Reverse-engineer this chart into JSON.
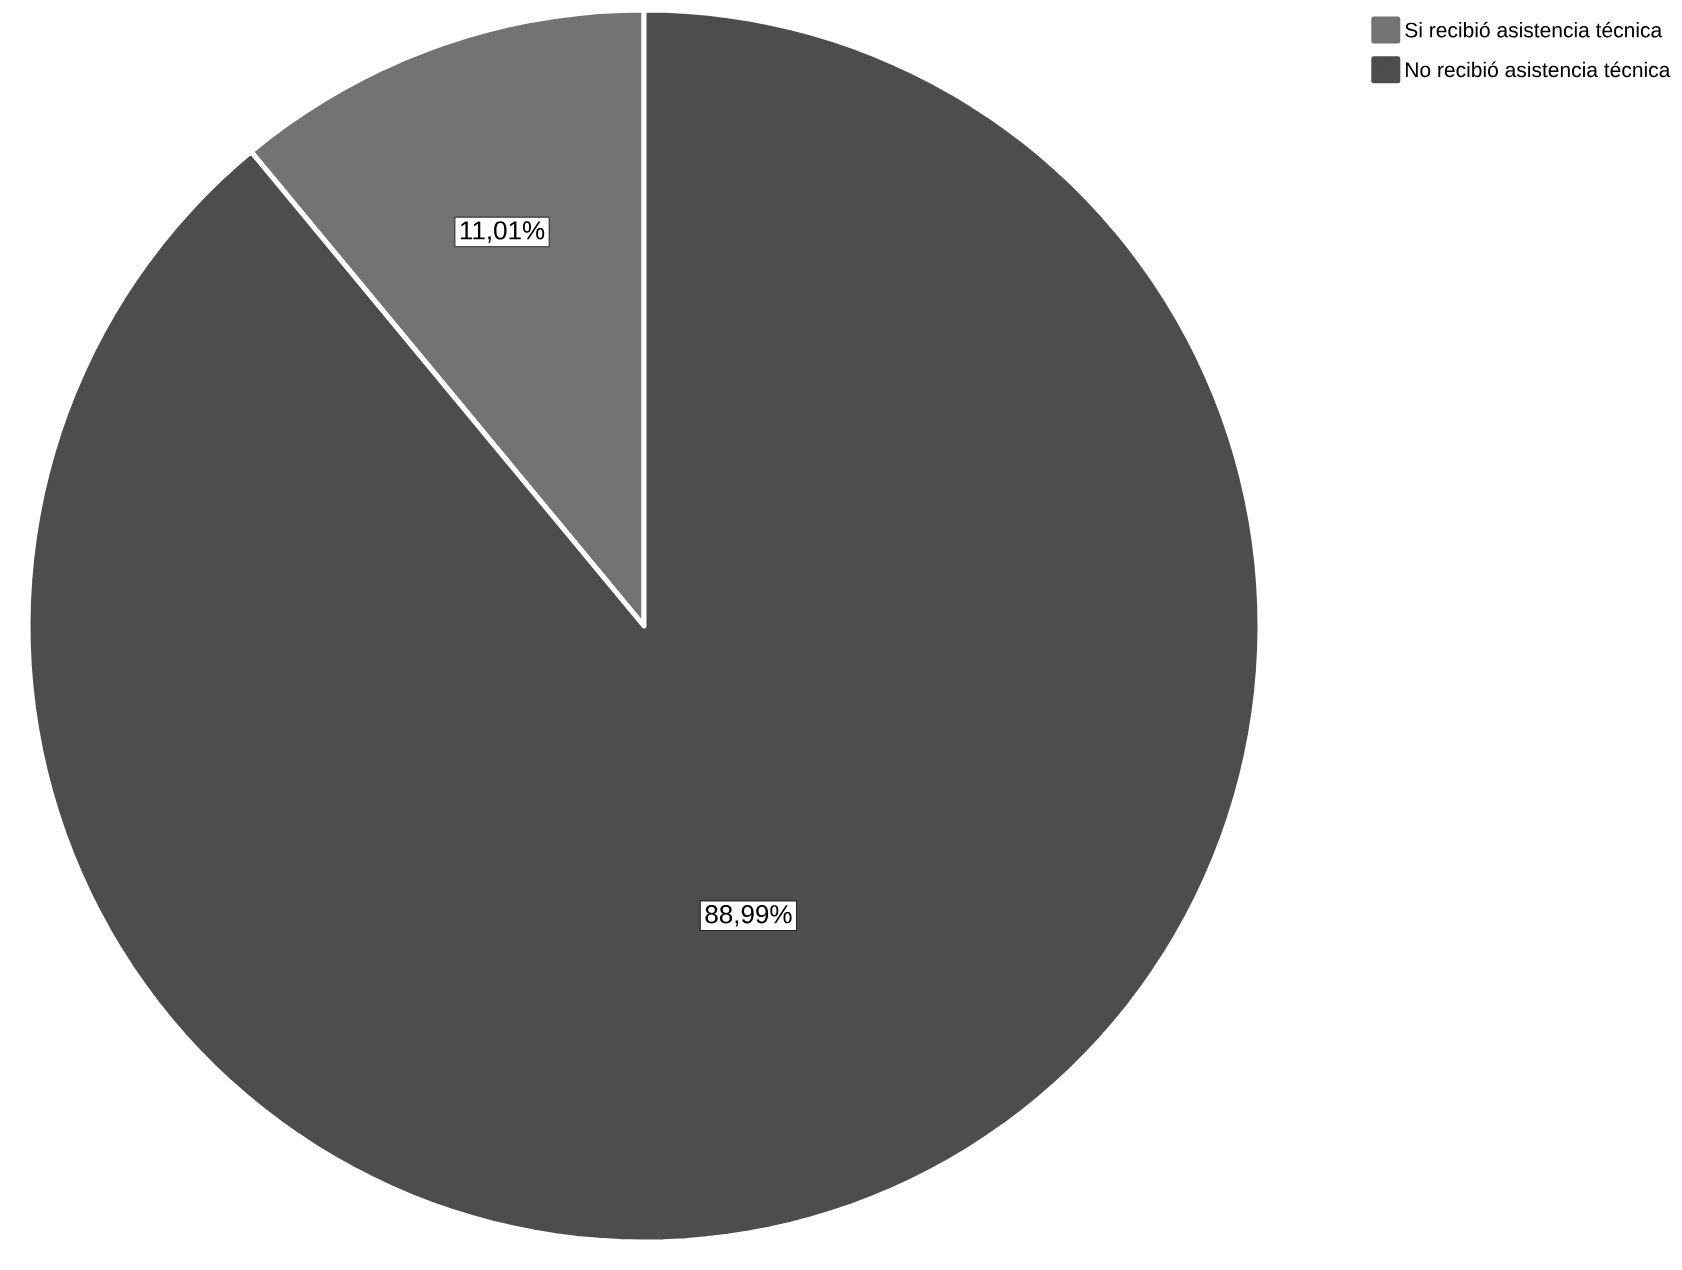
{
  "chart_data": {
    "type": "pie",
    "categories": [
      "Si recibió asistencia técnica",
      "No recibió asistencia técnica"
    ],
    "values": [
      11.01,
      88.99
    ],
    "colors": [
      "#737373",
      "#4d4d4d"
    ],
    "value_labels": [
      "11,01%",
      "88,99%"
    ],
    "legend": "top right"
  }
}
